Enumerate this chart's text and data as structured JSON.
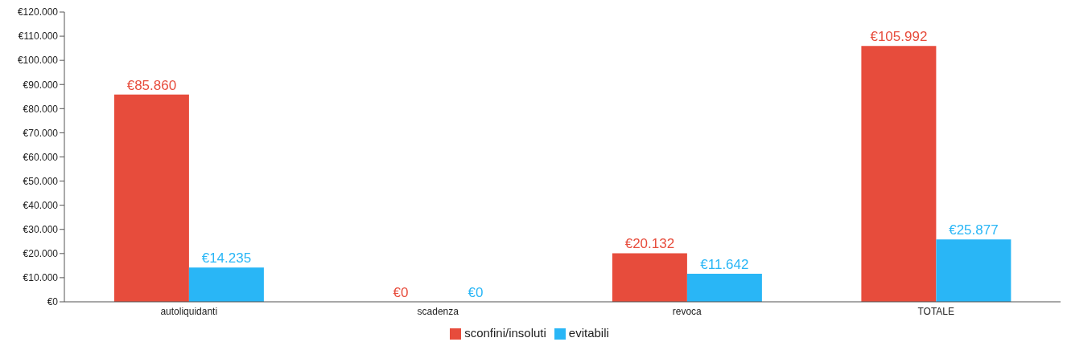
{
  "chart_data": {
    "type": "bar",
    "categories": [
      "autoliquidanti",
      "scadenza",
      "revoca",
      "TOTALE"
    ],
    "series": [
      {
        "name": "sconfini/insoluti",
        "color": "#e74c3c",
        "values": [
          85860,
          0,
          20132,
          105992
        ],
        "value_labels": [
          "€85.860",
          "€0",
          "€20.132",
          "€105.992"
        ]
      },
      {
        "name": "evitabili",
        "color": "#29b6f6",
        "values": [
          14235,
          0,
          11642,
          25877
        ],
        "value_labels": [
          "€14.235",
          "€0",
          "€11.642",
          "€25.877"
        ]
      }
    ],
    "ylim": [
      0,
      120000
    ],
    "yticks": [
      {
        "value": 0,
        "label": "€0"
      },
      {
        "value": 10000,
        "label": "€10.000"
      },
      {
        "value": 20000,
        "label": "€20.000"
      },
      {
        "value": 30000,
        "label": "€30.000"
      },
      {
        "value": 40000,
        "label": "€40.000"
      },
      {
        "value": 50000,
        "label": "€50.000"
      },
      {
        "value": 60000,
        "label": "€60.000"
      },
      {
        "value": 70000,
        "label": "€70.000"
      },
      {
        "value": 80000,
        "label": "€80.000"
      },
      {
        "value": 90000,
        "label": "€90.000"
      },
      {
        "value": 100000,
        "label": "€100.000"
      },
      {
        "value": 110000,
        "label": "€110.000"
      },
      {
        "value": 120000,
        "label": "€120.000"
      }
    ],
    "grid": false,
    "legend": "bottom"
  }
}
